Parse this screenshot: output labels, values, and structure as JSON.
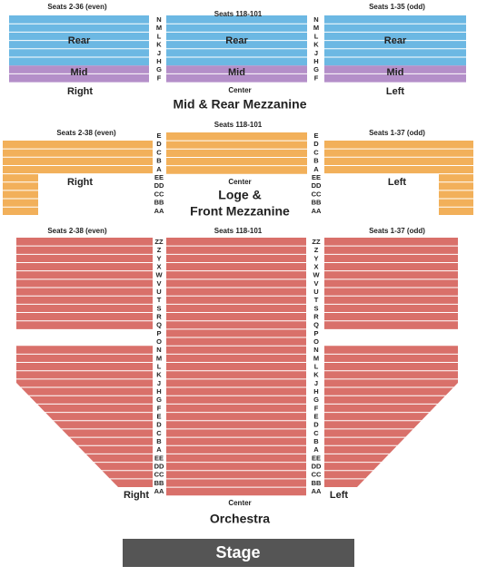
{
  "stage": "Stage",
  "sections": [
    {
      "name": [
        "Mid & Rear Mezzanine"
      ],
      "seats": [
        "Seats 2-36 (even)",
        "Seats 118-101",
        "Seats 1-35 (odd)"
      ],
      "sides": [
        "Right",
        "Center",
        "Left"
      ],
      "zones": [
        "Rear",
        "Mid"
      ],
      "rows": [
        "N",
        "M",
        "L",
        "K",
        "J",
        "H",
        "G",
        "F"
      ]
    },
    {
      "name": [
        "Loge &",
        "Front Mezzanine"
      ],
      "seats": [
        "Seats 2-38 (even)",
        "Seats 118-101",
        "Seats 1-37 (odd)"
      ],
      "sides": [
        "Right",
        "Center",
        "Left"
      ],
      "rows": [
        "E",
        "D",
        "C",
        "B",
        "A",
        "EE",
        "DD",
        "CC",
        "BB",
        "AA"
      ]
    },
    {
      "name": [
        "Orchestra"
      ],
      "seats": [
        "Seats 2-38 (even)",
        "Seats 118-101",
        "Seats 1-37 (odd)"
      ],
      "sides": [
        "Right",
        "Center",
        "Left"
      ],
      "rows": [
        "ZZ",
        "Z",
        "Y",
        "X",
        "W",
        "V",
        "U",
        "T",
        "S",
        "R",
        "Q",
        "P",
        "O",
        "N",
        "M",
        "L",
        "K",
        "J",
        "H",
        "G",
        "F",
        "E",
        "D",
        "C",
        "B",
        "A",
        "EE",
        "DD",
        "CC",
        "BB",
        "AA"
      ]
    }
  ]
}
